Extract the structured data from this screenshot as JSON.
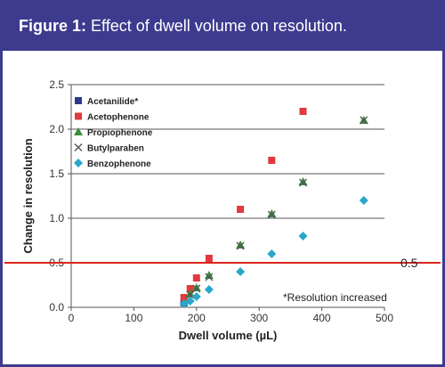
{
  "figure": {
    "label": "Figure 1:",
    "caption": "Effect of dwell volume on resolution."
  },
  "colors": {
    "frame": "#3d3b8e",
    "header_bg": "#3d3b8e",
    "header_text": "#ffffff",
    "reference_line": "#d9261c",
    "gridline": "#555555"
  },
  "chart_data": {
    "type": "scatter",
    "xlabel": "Dwell volume (µL)",
    "ylabel": "Change in resolution",
    "xlim": [
      0,
      500
    ],
    "ylim": [
      0,
      2.5
    ],
    "x_ticks": [
      "0",
      "100",
      "200",
      "300",
      "400",
      "500"
    ],
    "y_ticks": [
      "0.0",
      "0.5",
      "1.0",
      "1.5",
      "2.0",
      "2.5"
    ],
    "grid": "horizontal",
    "legend_position": "top-left",
    "series": [
      {
        "name": "Acetanilide*",
        "marker": "square",
        "color": "#2b3a8f",
        "points": [
          [
            180,
            0.05
          ]
        ]
      },
      {
        "name": "Acetophenone",
        "marker": "square",
        "color": "#e03a3e",
        "points": [
          [
            180,
            0.11
          ],
          [
            190,
            0.21
          ],
          [
            200,
            0.33
          ],
          [
            220,
            0.55
          ],
          [
            270,
            1.1
          ],
          [
            320,
            1.65
          ],
          [
            370,
            2.2
          ]
        ]
      },
      {
        "name": "Propiophenone",
        "marker": "triangle",
        "color": "#3c8c3c",
        "points": [
          [
            190,
            0.15
          ],
          [
            200,
            0.22
          ],
          [
            220,
            0.36
          ],
          [
            270,
            0.7
          ],
          [
            320,
            1.05
          ],
          [
            370,
            1.41
          ],
          [
            467,
            2.1
          ]
        ]
      },
      {
        "name": "Butylparaben",
        "marker": "x",
        "color": "#555555",
        "points": [
          [
            190,
            0.14
          ],
          [
            200,
            0.21
          ],
          [
            220,
            0.34
          ],
          [
            270,
            0.69
          ],
          [
            320,
            1.04
          ],
          [
            370,
            1.4
          ],
          [
            467,
            2.1
          ]
        ]
      },
      {
        "name": "Benzophenone",
        "marker": "diamond",
        "color": "#2aa7c9",
        "points": [
          [
            180,
            0.04
          ],
          [
            190,
            0.07
          ],
          [
            200,
            0.12
          ],
          [
            220,
            0.2
          ],
          [
            270,
            0.4
          ],
          [
            320,
            0.6
          ],
          [
            370,
            0.8
          ],
          [
            467,
            1.2
          ]
        ]
      }
    ],
    "reference_line": {
      "y": 0.5,
      "label": "0.5"
    },
    "annotation": "*Resolution increased"
  }
}
